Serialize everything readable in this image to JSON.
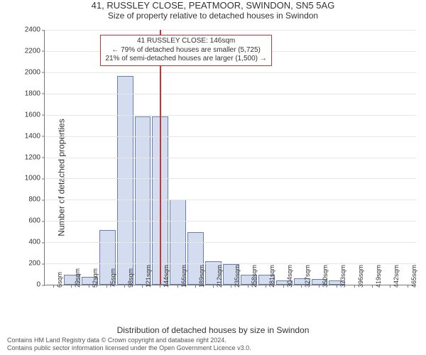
{
  "title": "41, RUSSLEY CLOSE, PEATMOOR, SWINDON, SN5 5AG",
  "subtitle": "Size of property relative to detached houses in Swindon",
  "ylabel": "Number of detached properties",
  "xlabel": "Distribution of detached houses by size in Swindon",
  "chart": {
    "type": "histogram",
    "ylim": [
      0,
      2400
    ],
    "ytick_step": 200,
    "grid_color": "#e6e6e6",
    "bar_fill": "#d4ddf0",
    "bar_stroke": "#6a7fae",
    "background_color": "#ffffff",
    "categories": [
      "6sqm",
      "29sqm",
      "52sqm",
      "75sqm",
      "98sqm",
      "121sqm",
      "144sqm",
      "166sqm",
      "189sqm",
      "212sqm",
      "235sqm",
      "258sqm",
      "281sqm",
      "304sqm",
      "327sqm",
      "350sqm",
      "373sqm",
      "396sqm",
      "419sqm",
      "442sqm",
      "465sqm"
    ],
    "values": [
      0,
      80,
      60,
      500,
      1950,
      1570,
      1570,
      790,
      480,
      210,
      180,
      80,
      80,
      30,
      50,
      40,
      30,
      0,
      0,
      0,
      0
    ],
    "marker": {
      "bin_index": 6,
      "color": "#cc3333"
    },
    "annotation": {
      "lines": [
        "41 RUSSLEY CLOSE: 146sqm",
        "← 79% of detached houses are smaller (5,725)",
        "21% of semi-detached houses are larger (1,500) →"
      ],
      "border_color": "#cc3333"
    }
  },
  "license": {
    "line1": "Contains HM Land Registry data © Crown copyright and database right 2024.",
    "line2": "Contains public sector information licensed under the Open Government Licence v3.0."
  }
}
